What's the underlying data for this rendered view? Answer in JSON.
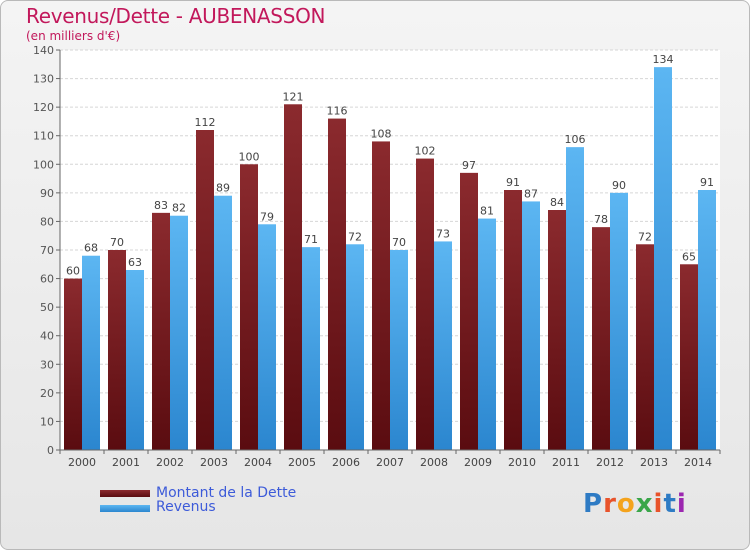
{
  "header": {
    "title": "Revenus/Dette - AUBENASSON",
    "subtitle": "(en milliers d'€)"
  },
  "legend": {
    "debt_label": "Montant de la Dette",
    "revenue_label": "Revenus"
  },
  "logo": {
    "text": "Proxiti"
  },
  "colors": {
    "debt": "#7a1f23",
    "revenue": "#4aa6e8",
    "title": "#c2185b",
    "legend_text": "#3d5bd9"
  },
  "chart_data": {
    "type": "bar",
    "title": "Revenus/Dette - AUBENASSON",
    "ylabel": "(en milliers d'€)",
    "xlabel": "",
    "ylim": [
      0,
      140
    ],
    "ytick_step": 10,
    "grid": true,
    "legend_position": "bottom-left",
    "categories": [
      "2000",
      "2001",
      "2002",
      "2003",
      "2004",
      "2005",
      "2006",
      "2007",
      "2008",
      "2009",
      "2010",
      "2011",
      "2012",
      "2013",
      "2014"
    ],
    "series": [
      {
        "name": "Montant de la Dette",
        "values": [
          60,
          70,
          83,
          112,
          100,
          121,
          116,
          108,
          102,
          97,
          91,
          84,
          78,
          72,
          65
        ]
      },
      {
        "name": "Revenus",
        "values": [
          68,
          63,
          82,
          89,
          79,
          71,
          72,
          70,
          73,
          81,
          87,
          106,
          90,
          134,
          91
        ]
      }
    ]
  }
}
